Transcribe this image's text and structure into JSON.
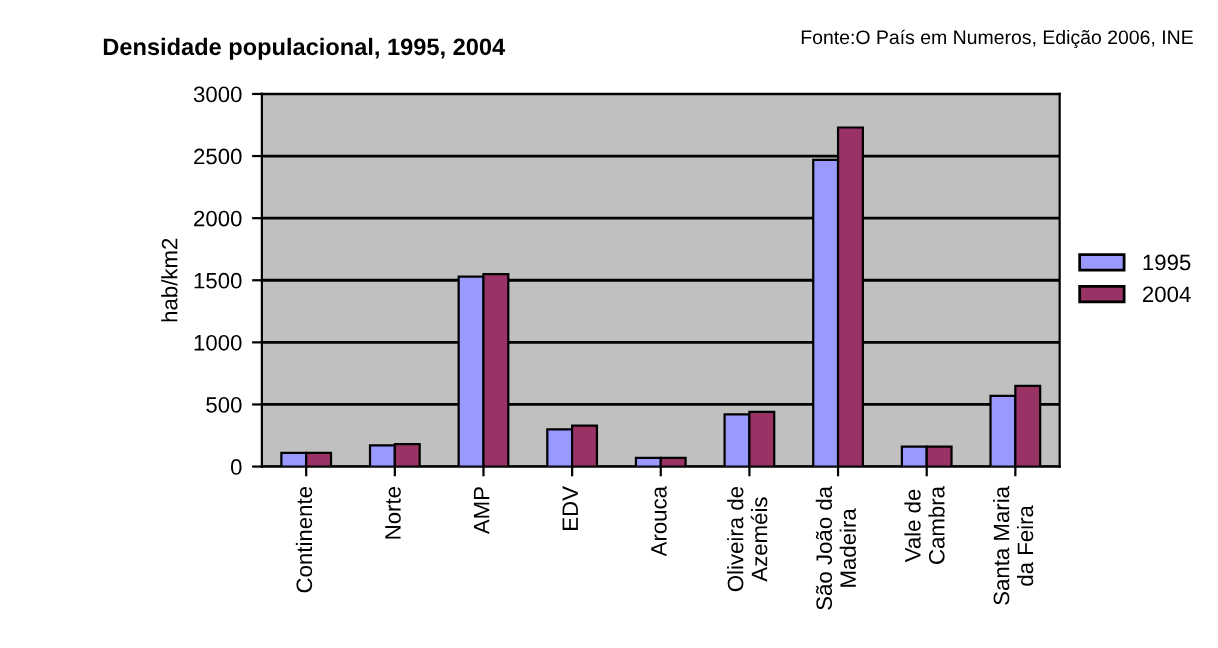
{
  "chart_data": {
    "type": "bar",
    "title": "Densidade populacional, 1995, 2004",
    "annotations": [
      "Fonte:O País em Numeros, Edição 2006, INE"
    ],
    "ylabel": "hab/km2",
    "categories": [
      "Continente",
      "Norte",
      "AMP",
      "EDV",
      "Arouca",
      "Oliveira de\nAzeméis",
      "São João da\nMadeira",
      "Vale de\nCambra",
      "Santa Maria\nda Feira"
    ],
    "series": [
      {
        "name": "1995",
        "color": "#9999ff",
        "values": [
          110,
          170,
          1530,
          300,
          70,
          420,
          2470,
          160,
          570
        ]
      },
      {
        "name": "2004",
        "color": "#993366",
        "values": [
          110,
          180,
          1550,
          330,
          70,
          440,
          2730,
          160,
          650
        ]
      }
    ],
    "ylim": [
      0,
      3000
    ],
    "yticks": [
      0,
      500,
      1000,
      1500,
      2000,
      2500,
      3000
    ],
    "grid": "y",
    "legend": "right"
  }
}
